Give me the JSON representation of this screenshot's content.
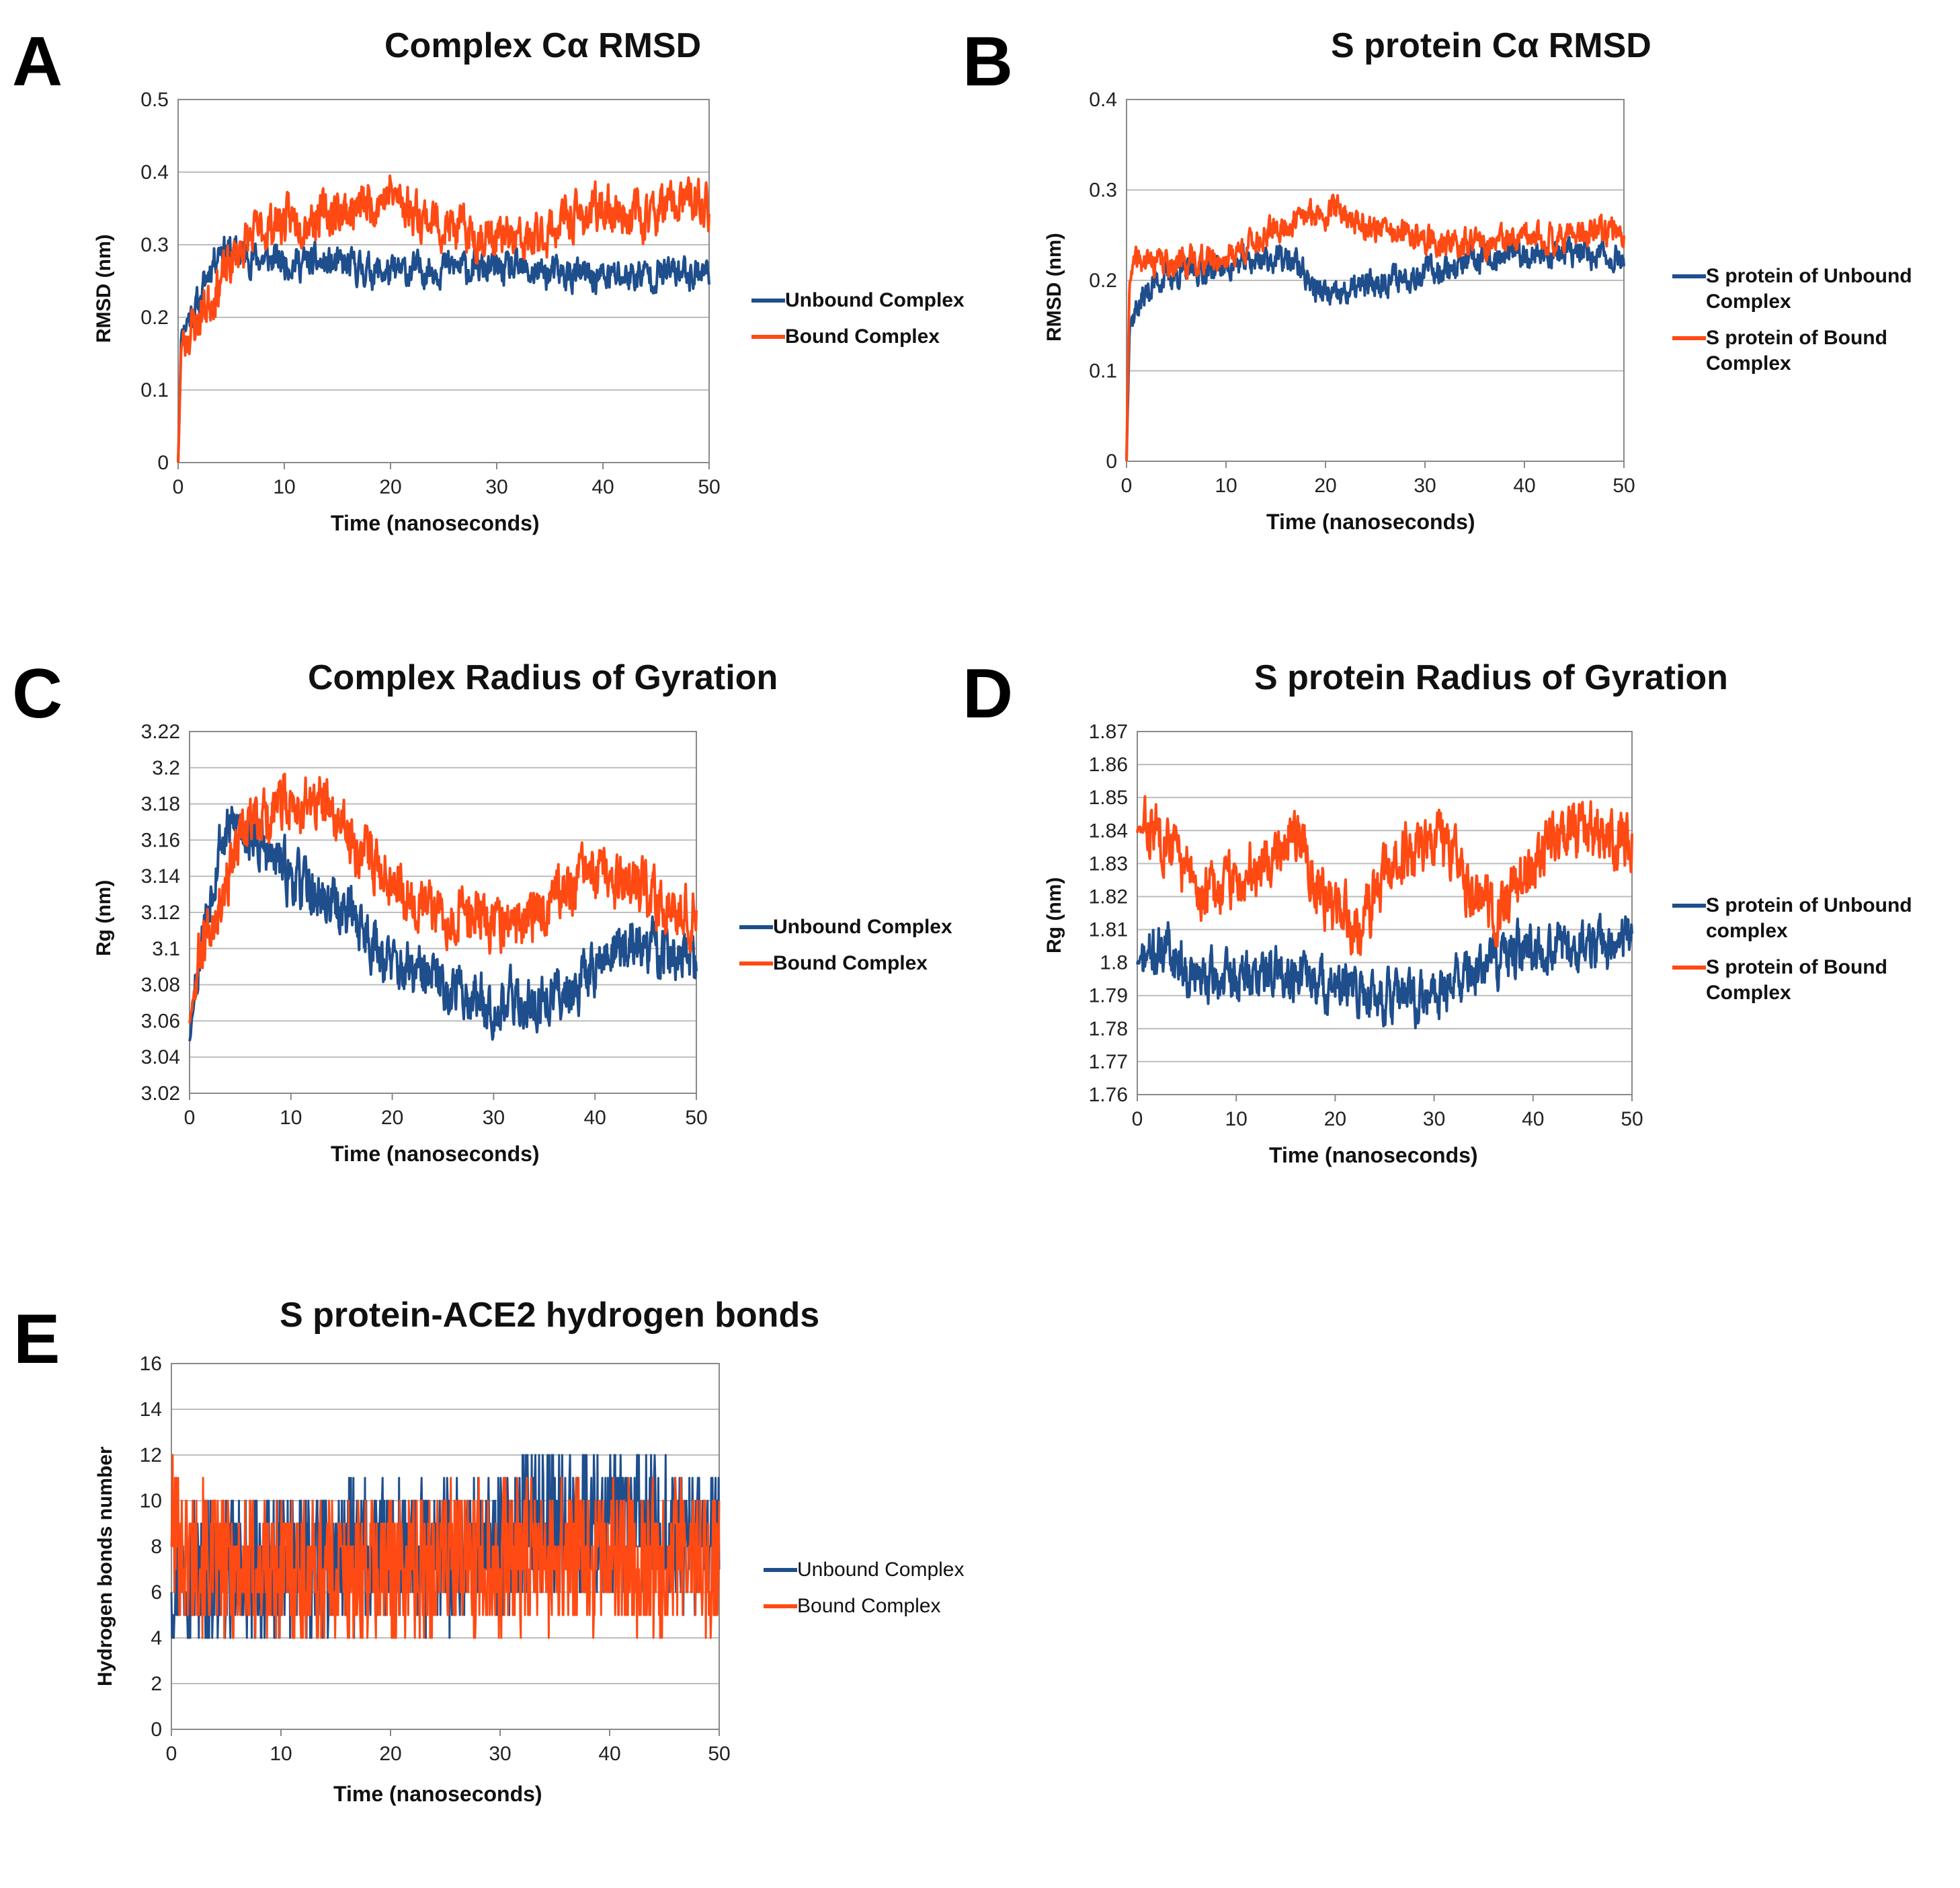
{
  "colors": {
    "unbound": "#1f4e8c",
    "bound": "#ff4a14",
    "grid": "#bdbdbd",
    "axis": "#8a8a8a"
  },
  "chart_data": [
    {
      "id": "A",
      "type": "line",
      "panel_letter": "A",
      "title": "Complex Cα RMSD",
      "xlabel": "Time (nanoseconds)",
      "ylabel": "RMSD (nm)",
      "xlim": [
        0,
        50
      ],
      "ylim": [
        0,
        0.5
      ],
      "xticks": [
        "0",
        "10",
        "20",
        "30",
        "40",
        "50"
      ],
      "yticks": [
        "0",
        "0.1",
        "0.2",
        "0.3",
        "0.4",
        "0.5"
      ],
      "legend_position": "right",
      "series": [
        {
          "name": "Unbound Complex",
          "color_key": "unbound",
          "noise": 0.018,
          "seed": 11,
          "keypoints": [
            [
              0,
              0
            ],
            [
              0.3,
              0.18
            ],
            [
              1,
              0.2
            ],
            [
              2,
              0.22
            ],
            [
              3,
              0.27
            ],
            [
              4,
              0.3
            ],
            [
              5,
              0.29
            ],
            [
              8,
              0.28
            ],
            [
              12,
              0.275
            ],
            [
              16,
              0.27
            ],
            [
              20,
              0.26
            ],
            [
              25,
              0.27
            ],
            [
              30,
              0.265
            ],
            [
              35,
              0.26
            ],
            [
              40,
              0.255
            ],
            [
              45,
              0.26
            ],
            [
              50,
              0.265
            ]
          ]
        },
        {
          "name": "Bound Complex",
          "color_key": "bound",
          "noise": 0.025,
          "seed": 23,
          "keypoints": [
            [
              0,
              0
            ],
            [
              0.3,
              0.16
            ],
            [
              1,
              0.18
            ],
            [
              2,
              0.2
            ],
            [
              4,
              0.25
            ],
            [
              6,
              0.3
            ],
            [
              9,
              0.33
            ],
            [
              13,
              0.34
            ],
            [
              17,
              0.35
            ],
            [
              20,
              0.37
            ],
            [
              23,
              0.34
            ],
            [
              26,
              0.32
            ],
            [
              30,
              0.31
            ],
            [
              33,
              0.3
            ],
            [
              36,
              0.33
            ],
            [
              40,
              0.35
            ],
            [
              44,
              0.34
            ],
            [
              48,
              0.36
            ],
            [
              50,
              0.35
            ]
          ]
        }
      ]
    },
    {
      "id": "B",
      "type": "line",
      "panel_letter": "B",
      "title": "S protein Cα RMSD",
      "xlabel": "Time (nanoseconds)",
      "ylabel": "RMSD (nm)",
      "xlim": [
        0,
        50
      ],
      "ylim": [
        0,
        0.4
      ],
      "xticks": [
        "0",
        "10",
        "20",
        "30",
        "40",
        "50"
      ],
      "yticks": [
        "0",
        "0.1",
        "0.2",
        "0.3",
        "0.4"
      ],
      "legend_position": "right",
      "series": [
        {
          "name": "S protein of Unbound Complex",
          "color_key": "unbound",
          "noise": 0.012,
          "seed": 37,
          "keypoints": [
            [
              0,
              0
            ],
            [
              0.3,
              0.15
            ],
            [
              1,
              0.17
            ],
            [
              3,
              0.2
            ],
            [
              6,
              0.21
            ],
            [
              10,
              0.215
            ],
            [
              14,
              0.225
            ],
            [
              17,
              0.22
            ],
            [
              19,
              0.19
            ],
            [
              21,
              0.18
            ],
            [
              23,
              0.19
            ],
            [
              26,
              0.2
            ],
            [
              30,
              0.21
            ],
            [
              35,
              0.22
            ],
            [
              40,
              0.23
            ],
            [
              45,
              0.23
            ],
            [
              50,
              0.225
            ]
          ]
        },
        {
          "name": "S protein of Bound Complex",
          "color_key": "bound",
          "noise": 0.012,
          "seed": 41,
          "keypoints": [
            [
              0,
              0
            ],
            [
              0.3,
              0.2
            ],
            [
              1,
              0.22
            ],
            [
              5,
              0.22
            ],
            [
              10,
              0.225
            ],
            [
              14,
              0.25
            ],
            [
              18,
              0.27
            ],
            [
              21,
              0.28
            ],
            [
              24,
              0.26
            ],
            [
              28,
              0.25
            ],
            [
              32,
              0.24
            ],
            [
              36,
              0.24
            ],
            [
              40,
              0.245
            ],
            [
              45,
              0.25
            ],
            [
              50,
              0.255
            ]
          ]
        }
      ]
    },
    {
      "id": "C",
      "type": "line",
      "panel_letter": "C",
      "title": "Complex Radius of Gyration",
      "xlabel": "Time (nanoseconds)",
      "ylabel": "Rg (nm)",
      "xlim": [
        0,
        50
      ],
      "ylim": [
        3.02,
        3.22
      ],
      "xticks": [
        "0",
        "10",
        "20",
        "30",
        "40",
        "50"
      ],
      "yticks": [
        "3.02",
        "3.04",
        "3.06",
        "3.08",
        "3.1",
        "3.12",
        "3.14",
        "3.16",
        "3.18",
        "3.2",
        "3.22"
      ],
      "legend_position": "right",
      "series": [
        {
          "name": "Unbound Complex",
          "color_key": "unbound",
          "noise": 0.012,
          "seed": 53,
          "keypoints": [
            [
              0,
              3.05
            ],
            [
              1,
              3.1
            ],
            [
              2,
              3.13
            ],
            [
              3,
              3.16
            ],
            [
              5,
              3.17
            ],
            [
              8,
              3.15
            ],
            [
              12,
              3.13
            ],
            [
              16,
              3.12
            ],
            [
              20,
              3.09
            ],
            [
              25,
              3.08
            ],
            [
              30,
              3.07
            ],
            [
              35,
              3.07
            ],
            [
              38,
              3.08
            ],
            [
              42,
              3.1
            ],
            [
              46,
              3.1
            ],
            [
              50,
              3.09
            ]
          ]
        },
        {
          "name": "Bound Complex",
          "color_key": "bound",
          "noise": 0.012,
          "seed": 67,
          "keypoints": [
            [
              0,
              3.06
            ],
            [
              1,
              3.1
            ],
            [
              3,
              3.13
            ],
            [
              6,
              3.17
            ],
            [
              10,
              3.18
            ],
            [
              13,
              3.18
            ],
            [
              16,
              3.16
            ],
            [
              20,
              3.14
            ],
            [
              24,
              3.12
            ],
            [
              28,
              3.12
            ],
            [
              32,
              3.11
            ],
            [
              36,
              3.13
            ],
            [
              40,
              3.14
            ],
            [
              45,
              3.13
            ],
            [
              50,
              3.12
            ]
          ]
        }
      ]
    },
    {
      "id": "D",
      "type": "line",
      "panel_letter": "D",
      "title": "S protein Radius of Gyration",
      "xlabel": "Time (nanoseconds)",
      "ylabel": "Rg (nm)",
      "xlim": [
        0,
        50
      ],
      "ylim": [
        1.76,
        1.87
      ],
      "xticks": [
        "0",
        "10",
        "20",
        "30",
        "40",
        "50"
      ],
      "yticks": [
        "1.76",
        "1.77",
        "1.78",
        "1.79",
        "1.8",
        "1.81",
        "1.82",
        "1.83",
        "1.84",
        "1.85",
        "1.86",
        "1.87"
      ],
      "legend_position": "right",
      "series": [
        {
          "name": "S protein of Unbound complex",
          "color_key": "unbound",
          "noise": 0.006,
          "seed": 71,
          "keypoints": [
            [
              0,
              1.8
            ],
            [
              3,
              1.805
            ],
            [
              6,
              1.795
            ],
            [
              10,
              1.795
            ],
            [
              15,
              1.798
            ],
            [
              20,
              1.792
            ],
            [
              25,
              1.79
            ],
            [
              29,
              1.788
            ],
            [
              32,
              1.795
            ],
            [
              36,
              1.8
            ],
            [
              40,
              1.805
            ],
            [
              44,
              1.805
            ],
            [
              48,
              1.805
            ],
            [
              50,
              1.81
            ]
          ]
        },
        {
          "name": "S protein  of Bound Complex",
          "color_key": "bound",
          "noise": 0.007,
          "seed": 83,
          "keypoints": [
            [
              0,
              1.84
            ],
            [
              3,
              1.84
            ],
            [
              6,
              1.82
            ],
            [
              10,
              1.825
            ],
            [
              14,
              1.835
            ],
            [
              16,
              1.84
            ],
            [
              19,
              1.82
            ],
            [
              22,
              1.81
            ],
            [
              26,
              1.83
            ],
            [
              30,
              1.84
            ],
            [
              33,
              1.825
            ],
            [
              36,
              1.815
            ],
            [
              40,
              1.83
            ],
            [
              44,
              1.84
            ],
            [
              50,
              1.835
            ]
          ]
        }
      ]
    },
    {
      "id": "E",
      "type": "line",
      "panel_letter": "E",
      "title": "S protein-ACE2 hydrogen bonds",
      "xlabel": "Time (nanoseconds)",
      "ylabel": "Hydrogen bonds number",
      "xlim": [
        0,
        50
      ],
      "ylim": [
        0,
        16
      ],
      "xticks": [
        "0",
        "10",
        "20",
        "30",
        "40",
        "50"
      ],
      "yticks": [
        "0",
        "2",
        "4",
        "6",
        "8",
        "10",
        "12",
        "14",
        "16"
      ],
      "legend_position": "right",
      "series": [
        {
          "name": "Unbound Complex",
          "color_key": "unbound",
          "noise": 2.0,
          "seed": 97,
          "integer": true,
          "keypoints": [
            [
              0,
              7
            ],
            [
              5,
              7
            ],
            [
              10,
              7
            ],
            [
              15,
              7.5
            ],
            [
              20,
              7.5
            ],
            [
              25,
              7.5
            ],
            [
              30,
              8
            ],
            [
              33,
              9
            ],
            [
              36,
              9
            ],
            [
              40,
              9
            ],
            [
              45,
              8.5
            ],
            [
              50,
              8
            ]
          ]
        },
        {
          "name": "Bound Complex",
          "color_key": "bound",
          "noise": 2.0,
          "seed": 101,
          "integer": true,
          "keypoints": [
            [
              0,
              9
            ],
            [
              1,
              8
            ],
            [
              5,
              7
            ],
            [
              10,
              7
            ],
            [
              15,
              7
            ],
            [
              20,
              7
            ],
            [
              25,
              7.5
            ],
            [
              30,
              7.5
            ],
            [
              35,
              7.5
            ],
            [
              40,
              7.5
            ],
            [
              45,
              7.5
            ],
            [
              50,
              7.5
            ]
          ]
        }
      ]
    }
  ]
}
